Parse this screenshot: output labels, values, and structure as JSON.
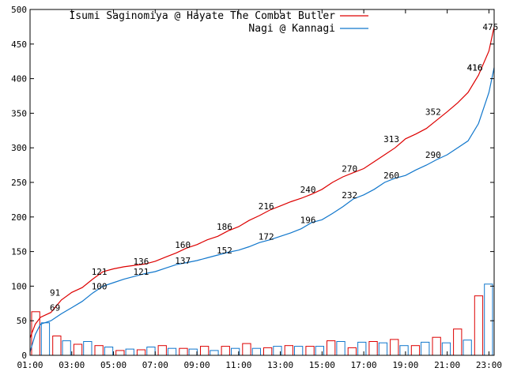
{
  "chart_data": {
    "type": "line",
    "title": "",
    "xlabel": "",
    "ylabel": "",
    "x_range": [
      "01:00",
      "23:15"
    ],
    "ylim": [
      0,
      500
    ],
    "y_ticks": [
      0,
      50,
      100,
      150,
      200,
      250,
      300,
      350,
      400,
      450,
      500
    ],
    "x_ticks": [
      "01:00",
      "03:00",
      "05:00",
      "07:00",
      "09:00",
      "11:00",
      "13:00",
      "15:00",
      "17:00",
      "19:00",
      "21:00",
      "23:00"
    ],
    "grid": false,
    "legend_position": "top-right",
    "series": [
      {
        "name": "Isumi Saginomiya @ Hayate The Combat Butler",
        "color": "#dd0000",
        "cumulative": [
          {
            "t": "01:00",
            "v": 25
          },
          {
            "t": "01:15",
            "v": 45
          },
          {
            "t": "01:30",
            "v": 55
          },
          {
            "t": "02:00",
            "v": 62
          },
          {
            "t": "02:30",
            "v": 80
          },
          {
            "t": "03:00",
            "v": 91
          },
          {
            "t": "03:30",
            "v": 98
          },
          {
            "t": "04:00",
            "v": 110
          },
          {
            "t": "04:30",
            "v": 121
          },
          {
            "t": "05:00",
            "v": 125
          },
          {
            "t": "05:30",
            "v": 128
          },
          {
            "t": "06:00",
            "v": 130
          },
          {
            "t": "06:30",
            "v": 132
          },
          {
            "t": "07:00",
            "v": 136
          },
          {
            "t": "07:30",
            "v": 142
          },
          {
            "t": "08:00",
            "v": 148
          },
          {
            "t": "08:30",
            "v": 155
          },
          {
            "t": "09:00",
            "v": 160
          },
          {
            "t": "09:30",
            "v": 167
          },
          {
            "t": "10:00",
            "v": 172
          },
          {
            "t": "10:30",
            "v": 180
          },
          {
            "t": "11:00",
            "v": 186
          },
          {
            "t": "11:30",
            "v": 195
          },
          {
            "t": "12:00",
            "v": 202
          },
          {
            "t": "12:30",
            "v": 210
          },
          {
            "t": "13:00",
            "v": 216
          },
          {
            "t": "13:30",
            "v": 222
          },
          {
            "t": "14:00",
            "v": 227
          },
          {
            "t": "14:30",
            "v": 233
          },
          {
            "t": "15:00",
            "v": 240
          },
          {
            "t": "15:30",
            "v": 250
          },
          {
            "t": "16:00",
            "v": 258
          },
          {
            "t": "16:30",
            "v": 264
          },
          {
            "t": "17:00",
            "v": 270
          },
          {
            "t": "17:30",
            "v": 280
          },
          {
            "t": "18:00",
            "v": 290
          },
          {
            "t": "18:30",
            "v": 300
          },
          {
            "t": "19:00",
            "v": 313
          },
          {
            "t": "19:30",
            "v": 320
          },
          {
            "t": "20:00",
            "v": 328
          },
          {
            "t": "20:30",
            "v": 340
          },
          {
            "t": "21:00",
            "v": 352
          },
          {
            "t": "21:30",
            "v": 365
          },
          {
            "t": "22:00",
            "v": 380
          },
          {
            "t": "22:30",
            "v": 405
          },
          {
            "t": "23:00",
            "v": 440
          },
          {
            "t": "23:15",
            "v": 475
          }
        ],
        "labels": [
          {
            "t": "02:15",
            "v": 91
          },
          {
            "t": "04:15",
            "v": 121
          },
          {
            "t": "06:15",
            "v": 136
          },
          {
            "t": "08:15",
            "v": 160
          },
          {
            "t": "10:15",
            "v": 186
          },
          {
            "t": "12:15",
            "v": 216
          },
          {
            "t": "14:15",
            "v": 240
          },
          {
            "t": "16:15",
            "v": 270
          },
          {
            "t": "18:15",
            "v": 313
          },
          {
            "t": "20:15",
            "v": 352
          },
          {
            "t": "22:15",
            "v": 416
          },
          {
            "t": "23:00",
            "v": 475
          }
        ],
        "hourly": [
          63,
          28,
          16,
          14,
          7,
          8,
          14,
          10,
          13,
          13,
          17,
          11,
          14,
          13,
          21,
          11,
          20,
          23,
          14,
          26,
          38,
          86
        ]
      },
      {
        "name": "Nagi @ Kannagi",
        "color": "#1177cc",
        "cumulative": [
          {
            "t": "01:00",
            "v": 5
          },
          {
            "t": "01:15",
            "v": 30
          },
          {
            "t": "01:30",
            "v": 45
          },
          {
            "t": "02:00",
            "v": 50
          },
          {
            "t": "02:30",
            "v": 60
          },
          {
            "t": "03:00",
            "v": 69
          },
          {
            "t": "03:30",
            "v": 78
          },
          {
            "t": "04:00",
            "v": 90
          },
          {
            "t": "04:30",
            "v": 100
          },
          {
            "t": "05:00",
            "v": 105
          },
          {
            "t": "05:30",
            "v": 110
          },
          {
            "t": "06:00",
            "v": 114
          },
          {
            "t": "06:30",
            "v": 118
          },
          {
            "t": "07:00",
            "v": 121
          },
          {
            "t": "07:30",
            "v": 126
          },
          {
            "t": "08:00",
            "v": 131
          },
          {
            "t": "08:30",
            "v": 134
          },
          {
            "t": "09:00",
            "v": 137
          },
          {
            "t": "09:30",
            "v": 141
          },
          {
            "t": "10:00",
            "v": 145
          },
          {
            "t": "10:30",
            "v": 149
          },
          {
            "t": "11:00",
            "v": 152
          },
          {
            "t": "11:30",
            "v": 157
          },
          {
            "t": "12:00",
            "v": 163
          },
          {
            "t": "12:30",
            "v": 167
          },
          {
            "t": "13:00",
            "v": 172
          },
          {
            "t": "13:30",
            "v": 177
          },
          {
            "t": "14:00",
            "v": 183
          },
          {
            "t": "14:30",
            "v": 192
          },
          {
            "t": "15:00",
            "v": 196
          },
          {
            "t": "15:30",
            "v": 205
          },
          {
            "t": "16:00",
            "v": 215
          },
          {
            "t": "16:30",
            "v": 226
          },
          {
            "t": "17:00",
            "v": 232
          },
          {
            "t": "17:30",
            "v": 240
          },
          {
            "t": "18:00",
            "v": 250
          },
          {
            "t": "18:30",
            "v": 256
          },
          {
            "t": "19:00",
            "v": 260
          },
          {
            "t": "19:30",
            "v": 268
          },
          {
            "t": "20:00",
            "v": 275
          },
          {
            "t": "20:30",
            "v": 283
          },
          {
            "t": "21:00",
            "v": 290
          },
          {
            "t": "21:30",
            "v": 300
          },
          {
            "t": "22:00",
            "v": 310
          },
          {
            "t": "22:30",
            "v": 335
          },
          {
            "t": "23:00",
            "v": 380
          },
          {
            "t": "23:15",
            "v": 416
          }
        ],
        "labels": [
          {
            "t": "02:15",
            "v": 69
          },
          {
            "t": "04:15",
            "v": 100
          },
          {
            "t": "06:15",
            "v": 121
          },
          {
            "t": "08:15",
            "v": 137
          },
          {
            "t": "10:15",
            "v": 152
          },
          {
            "t": "12:15",
            "v": 172
          },
          {
            "t": "14:15",
            "v": 196
          },
          {
            "t": "16:15",
            "v": 232
          },
          {
            "t": "18:15",
            "v": 260
          },
          {
            "t": "20:15",
            "v": 290
          },
          {
            "t": "22:15",
            "v": 416
          }
        ],
        "hourly": [
          47,
          21,
          20,
          12,
          9,
          12,
          10,
          9,
          7,
          10,
          10,
          13,
          13,
          13,
          20,
          19,
          18,
          14,
          19,
          18,
          22,
          103
        ]
      }
    ]
  }
}
